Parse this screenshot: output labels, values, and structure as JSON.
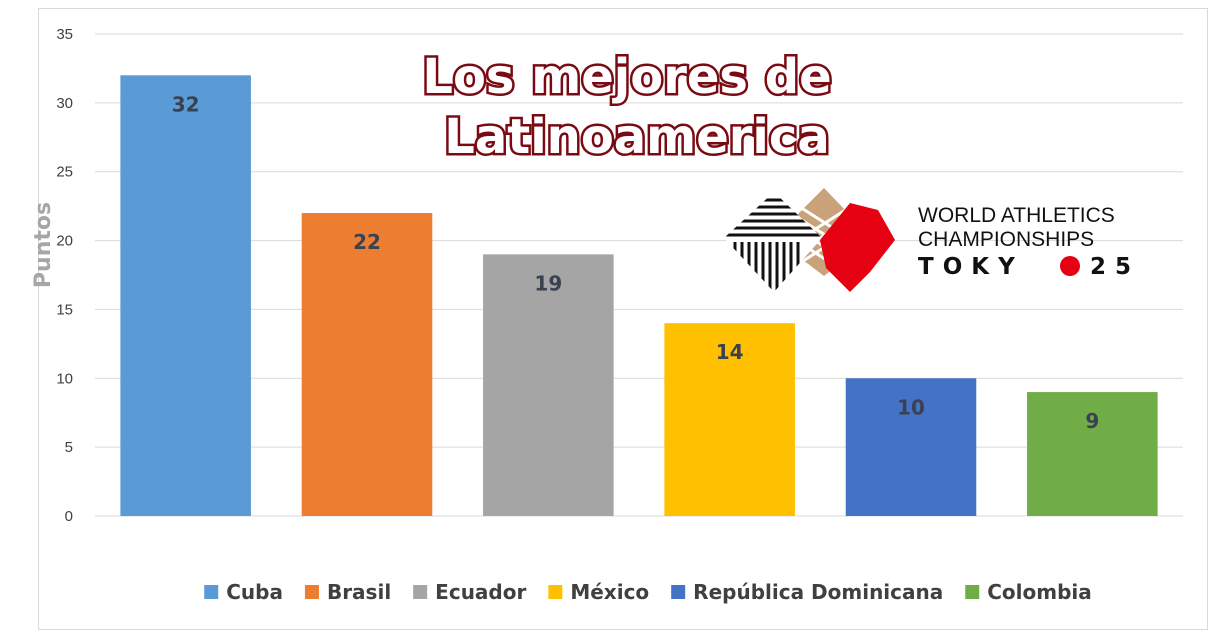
{
  "chart_data": {
    "type": "bar",
    "title_lines": [
      "Los mejores de",
      "Latinoamerica"
    ],
    "ylabel": "Puntos",
    "xlabel": "",
    "ylim": [
      0,
      35
    ],
    "yticks": [
      "0",
      "5",
      "10",
      "15",
      "20",
      "25",
      "30",
      "35"
    ],
    "ytick_values": [
      0,
      5,
      10,
      15,
      20,
      25,
      30,
      35
    ],
    "grid": true,
    "legend_position": "bottom",
    "categories": [
      "Cuba",
      "Brasil",
      "Ecuador",
      "México",
      "República Dominicana",
      "Colombia"
    ],
    "values": [
      32,
      22,
      19,
      14,
      10,
      9
    ],
    "data_labels": [
      "32",
      "22",
      "19",
      "14",
      "10",
      "9"
    ],
    "colors": [
      "#5b9bd5",
      "#ed7d31",
      "#a5a5a5",
      "#ffc000",
      "#4472c4",
      "#70ad47"
    ]
  },
  "logo": {
    "line1": "WORLD ATHLETICS",
    "line2": "CHAMPIONSHIPS",
    "line3_left": "TOKY",
    "line3_right": "25",
    "accent": "#e50012"
  }
}
